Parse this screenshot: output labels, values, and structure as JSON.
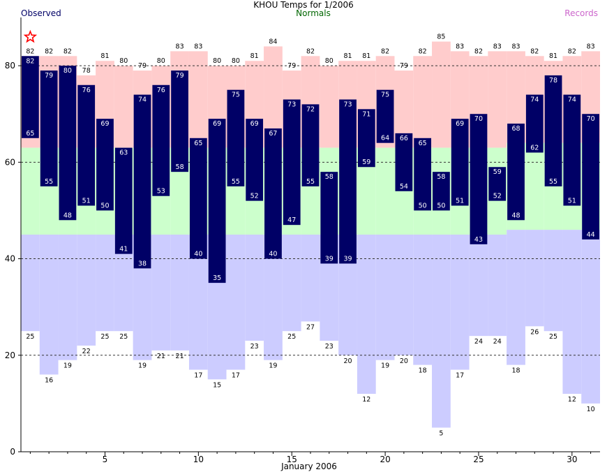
{
  "chart_data": {
    "type": "bar",
    "title": "KHOU Temps for 1/2006",
    "xlabel": "January 2006",
    "ylabel": "",
    "legend": {
      "observed": "Observed",
      "normals": "Normals",
      "records": "Records"
    },
    "ylim": [
      0,
      90
    ],
    "xlim": [
      0.5,
      31.5
    ],
    "y_ticks": [
      0,
      20,
      40,
      60,
      80
    ],
    "x_ticks": [
      5,
      10,
      15,
      20,
      25,
      30
    ],
    "grid": "dashed horizontal at 20, 40, 60, 80",
    "days": [
      1,
      2,
      3,
      4,
      5,
      6,
      7,
      8,
      9,
      10,
      11,
      12,
      13,
      14,
      15,
      16,
      17,
      18,
      19,
      20,
      21,
      22,
      23,
      24,
      25,
      26,
      27,
      28,
      29,
      30,
      31
    ],
    "observed_high": [
      82,
      79,
      80,
      76,
      69,
      63,
      74,
      76,
      79,
      65,
      69,
      75,
      69,
      67,
      73,
      72,
      58,
      73,
      71,
      75,
      66,
      65,
      58,
      69,
      70,
      59,
      68,
      74,
      78,
      74,
      70
    ],
    "observed_low": [
      65,
      55,
      48,
      51,
      50,
      41,
      38,
      53,
      58,
      40,
      35,
      55,
      52,
      40,
      47,
      55,
      39,
      39,
      59,
      64,
      54,
      50,
      50,
      51,
      43,
      52,
      48,
      62,
      55,
      51,
      44
    ],
    "record_high": [
      82,
      82,
      82,
      78,
      81,
      80,
      79,
      80,
      83,
      83,
      80,
      80,
      81,
      84,
      79,
      82,
      80,
      81,
      81,
      82,
      79,
      82,
      85,
      83,
      82,
      83,
      83,
      82,
      81,
      82,
      83
    ],
    "record_low": [
      25,
      16,
      19,
      22,
      25,
      25,
      19,
      21,
      21,
      17,
      15,
      17,
      23,
      19,
      25,
      27,
      23,
      20,
      12,
      19,
      20,
      18,
      5,
      17,
      24,
      24,
      18,
      26,
      25,
      12,
      10
    ],
    "normal_high": [
      63,
      63,
      63,
      63,
      63,
      63,
      63,
      63,
      63,
      63,
      63,
      63,
      63,
      63,
      63,
      63,
      63,
      63,
      63,
      63,
      63,
      63,
      63,
      63,
      63,
      63,
      64,
      64,
      64,
      64,
      64
    ],
    "normal_low": [
      45,
      45,
      45,
      45,
      45,
      45,
      45,
      45,
      45,
      45,
      45,
      45,
      45,
      45,
      45,
      45,
      45,
      45,
      45,
      45,
      45,
      45,
      45,
      45,
      45,
      45,
      46,
      46,
      46,
      46,
      46
    ],
    "markers": [
      {
        "day": 1,
        "type": "star",
        "meaning": "record high tied",
        "color": "#ff0000"
      }
    ],
    "colors": {
      "observed": "#000066",
      "observed_text": "#000066",
      "normals_fill": "#ccffcc",
      "normals_text": "#006600",
      "records_high_fill": "#ffcccc",
      "records_low_fill": "#ccccff",
      "records_text": "#cc66cc",
      "label_on_bar": "#ffffff",
      "label_record": "#000000"
    }
  }
}
